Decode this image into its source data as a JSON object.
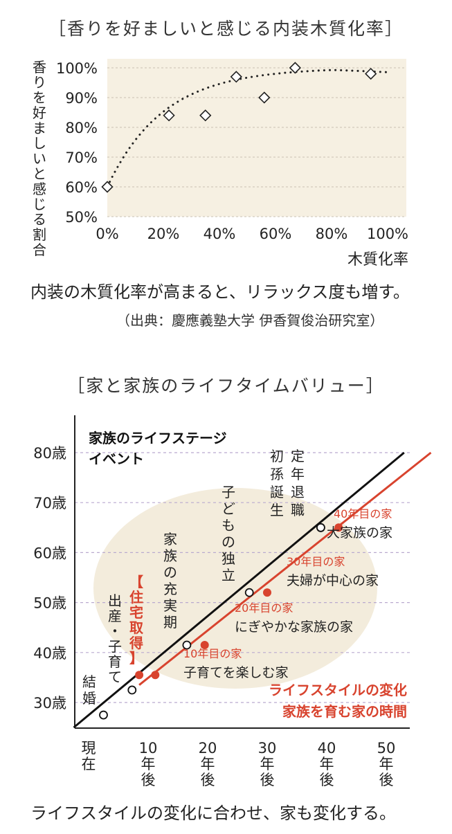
{
  "figure1": {
    "title": "［香りを好ましいと感じる内装木質化率］",
    "caption": "内装の木質化率が高まると、リラックス度も増す。",
    "source": "（出典：慶應義塾大学 伊香賀俊治研究室）"
  },
  "figure2": {
    "title": "［家と家族のライフタイムバリュー］",
    "caption": "ライフスタイルの変化に合わせ、家も変化する。"
  },
  "chart_data": [
    {
      "type": "scatter",
      "title": "香りを好ましいと感じる内装木質化率",
      "xlabel": "木質化率",
      "ylabel": "香りを好ましいと感じる割合",
      "xlim": [
        0,
        100
      ],
      "ylim": [
        50,
        100
      ],
      "x_ticks": [
        "0%",
        "20%",
        "40%",
        "60%",
        "80%",
        "100%"
      ],
      "y_ticks": [
        "50%",
        "60%",
        "70%",
        "80%",
        "90%",
        "100%"
      ],
      "points": [
        {
          "x": 0,
          "y": 60
        },
        {
          "x": 22,
          "y": 84
        },
        {
          "x": 35,
          "y": 84
        },
        {
          "x": 46,
          "y": 97
        },
        {
          "x": 56,
          "y": 90
        },
        {
          "x": 67,
          "y": 100
        },
        {
          "x": 94,
          "y": 98
        }
      ],
      "trend": "dotted curve",
      "grid": true,
      "colors": {
        "background": "#f6f0e2",
        "grid": "#c9c1b3",
        "marker": "#222222"
      }
    },
    {
      "type": "line",
      "title": "家と家族のライフタイムバリュー",
      "xlim": [
        0,
        50
      ],
      "ylim": [
        25,
        80
      ],
      "x_ticks": [
        {
          "v": 0,
          "lines": [
            "現",
            "在"
          ]
        },
        {
          "v": 10,
          "lines": [
            "10",
            "年",
            "後"
          ]
        },
        {
          "v": 20,
          "lines": [
            "20",
            "年",
            "後"
          ]
        },
        {
          "v": 30,
          "lines": [
            "30",
            "年",
            "後"
          ]
        },
        {
          "v": 40,
          "lines": [
            "40",
            "年",
            "後"
          ]
        },
        {
          "v": 50,
          "lines": [
            "50",
            "年",
            "後"
          ]
        }
      ],
      "y_ticks": [
        {
          "v": 30,
          "label": "30歳"
        },
        {
          "v": 40,
          "label": "40歳"
        },
        {
          "v": 50,
          "label": "50歳"
        },
        {
          "v": 60,
          "label": "60歳"
        },
        {
          "v": 70,
          "label": "70歳"
        },
        {
          "v": 80,
          "label": "80歳"
        }
      ],
      "grid": true,
      "series": [
        {
          "name": "家族のライフステージ イベント",
          "color": "#111111",
          "line": [
            [
              -2.5,
              25
            ],
            [
              53.0,
              80
            ]
          ],
          "points": [
            {
              "x": 2.5,
              "y": 27.5,
              "label": "結婚"
            },
            {
              "x": 7.3,
              "y": 32.5,
              "label": "出産・子育て"
            },
            {
              "x": 16.5,
              "y": 41.5,
              "label": "家族の充実期"
            },
            {
              "x": 27.0,
              "y": 52.0,
              "label": "子どもの独立"
            },
            {
              "x": 39.0,
              "y": 65.0,
              "label": "初孫誕生"
            },
            {
              "x": 39.0,
              "y": 65.0,
              "label": "定年退職"
            }
          ],
          "point_style": "open-circle"
        },
        {
          "name": "ライフスタイルの変化 家族を育む家の時間",
          "color": "#d8432e",
          "line": [
            [
              8.5,
              33.5
            ],
            [
              57.5,
              80
            ]
          ],
          "points": [
            {
              "x": 8.5,
              "y": 35.5,
              "label": "住宅取得"
            },
            {
              "x": 11.2,
              "y": 35.5,
              "label": ""
            },
            {
              "x": 19.5,
              "y": 41.5,
              "label": "10年目の家 子育てを楽しむ家"
            },
            {
              "x": 30.0,
              "y": 52.0,
              "label": "20年目の家 にぎやかな家族の家"
            },
            {
              "x": 42.0,
              "y": 65.0,
              "label": "30年目の家 夫婦が中心の家 / 40年目の家 大家族の家"
            }
          ],
          "point_style": "filled-circle"
        }
      ],
      "annotations": {
        "legend_black_1": "家族のライフステージ",
        "legend_black_2": "イベント",
        "legend_red_1": "ライフスタイルの変化",
        "legend_red_2": "家族を育む家の時間",
        "event_marriage": "結婚",
        "event_birth": "出産・子育て",
        "event_house": "【住宅取得】",
        "event_fulfill": "家族の充実期",
        "event_independence": "子どもの独立",
        "event_grandchild": "初孫誕生",
        "event_retire": "定年退職",
        "house10_title": "10年目の家",
        "house10_desc": "子育てを楽しむ家",
        "house20_title": "20年目の家",
        "house20_desc": "にぎやかな家族の家",
        "house30_title": "30年目の家",
        "house30_desc": "夫婦が中心の家",
        "house40_title": "40年目の家",
        "house40_desc": "大家族の家"
      }
    }
  ]
}
